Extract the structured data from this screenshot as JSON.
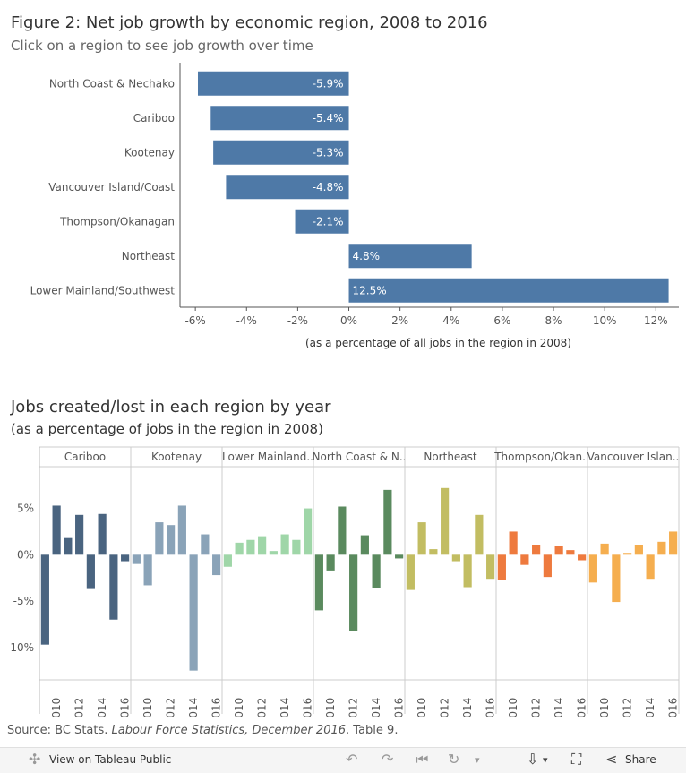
{
  "page": {
    "title1": "Figure 2: Net job growth by economic region, 2008 to 2016",
    "subtitle1": "Click on a region to see job growth over time",
    "title2": "Jobs created/lost in each region by year",
    "subtitle2": "(as a percentage of jobs in the region in 2008)",
    "source_prefix": "Source: BC Stats. ",
    "source_italic": "Labour Force Statistics, December 2016",
    "source_suffix": ". Table 9."
  },
  "footer": {
    "view_label": "View on Tableau Public",
    "share_label": "Share"
  },
  "colors": {
    "bar_blue": "#4e79a7",
    "Cariboo": "#4a6480",
    "Kootenay": "#8aa3b8",
    "Lower Mainland..": "#9fd6a8",
    "North Coast & N..": "#5a8a5e",
    "Northeast": "#c2bd62",
    "Thompson/Okan..": "#ee7a3e",
    "Vancouver Islan..": "#f5ae4f"
  },
  "chart_data": [
    {
      "type": "bar",
      "orientation": "horizontal",
      "title": "Figure 2: Net job growth by economic region, 2008 to 2016",
      "categories": [
        "North Coast & Nechako",
        "Cariboo",
        "Kootenay",
        "Vancouver Island/Coast",
        "Thompson/Okanagan",
        "Northeast",
        "Lower Mainland/Southwest"
      ],
      "values": [
        -5.9,
        -5.4,
        -5.3,
        -4.8,
        -2.1,
        4.8,
        12.5
      ],
      "labels": [
        "-5.9%",
        "-5.4%",
        "-5.3%",
        "-4.8%",
        "-2.1%",
        "4.8%",
        "12.5%"
      ],
      "xlabel": "(as a percentage of all jobs in the region in 2008)",
      "xlim": [
        -6.6,
        12.9
      ],
      "xticks": [
        -6,
        -4,
        -2,
        0,
        2,
        4,
        6,
        8,
        10,
        12
      ],
      "xtick_labels": [
        "-6%",
        "-4%",
        "-2%",
        "0%",
        "2%",
        "4%",
        "6%",
        "8%",
        "10%",
        "12%"
      ]
    },
    {
      "type": "bar",
      "title": "Jobs created/lost in each region by year",
      "ylabel": "(as a percentage of jobs in the region in 2008)",
      "ylim": [
        -13.5,
        9.5
      ],
      "yticks": [
        5,
        0,
        -5,
        -10
      ],
      "ytick_labels": [
        "5%",
        "0%",
        "-5%",
        "-10%"
      ],
      "years": [
        2009,
        2010,
        2011,
        2012,
        2013,
        2014,
        2015,
        2016
      ],
      "xtick_labels": [
        "2010",
        "2012",
        "2014",
        "2016"
      ],
      "series": [
        {
          "name": "Cariboo",
          "values": [
            -9.7,
            5.3,
            1.8,
            4.3,
            -3.7,
            4.4,
            -7.0,
            -0.7
          ]
        },
        {
          "name": "Kootenay",
          "values": [
            -1.0,
            -3.3,
            3.5,
            3.2,
            5.3,
            -12.5,
            2.2,
            -2.2
          ]
        },
        {
          "name": "Lower Mainland..",
          "values": [
            -1.3,
            1.3,
            1.6,
            2.0,
            0.4,
            2.2,
            1.6,
            5.0
          ]
        },
        {
          "name": "North Coast & N..",
          "values": [
            -6.0,
            -1.7,
            5.2,
            -8.2,
            2.1,
            -3.6,
            7.0,
            -0.4
          ]
        },
        {
          "name": "Northeast",
          "values": [
            -3.8,
            3.5,
            0.6,
            7.2,
            -0.7,
            -3.5,
            4.3,
            -2.6
          ]
        },
        {
          "name": "Thompson/Okan..",
          "values": [
            -2.7,
            2.5,
            -1.1,
            1.0,
            -2.4,
            0.9,
            0.5,
            -0.6
          ]
        },
        {
          "name": "Vancouver Islan..",
          "values": [
            -3.0,
            1.2,
            -5.1,
            0.2,
            1.0,
            -2.6,
            1.4,
            2.5
          ]
        }
      ]
    }
  ]
}
